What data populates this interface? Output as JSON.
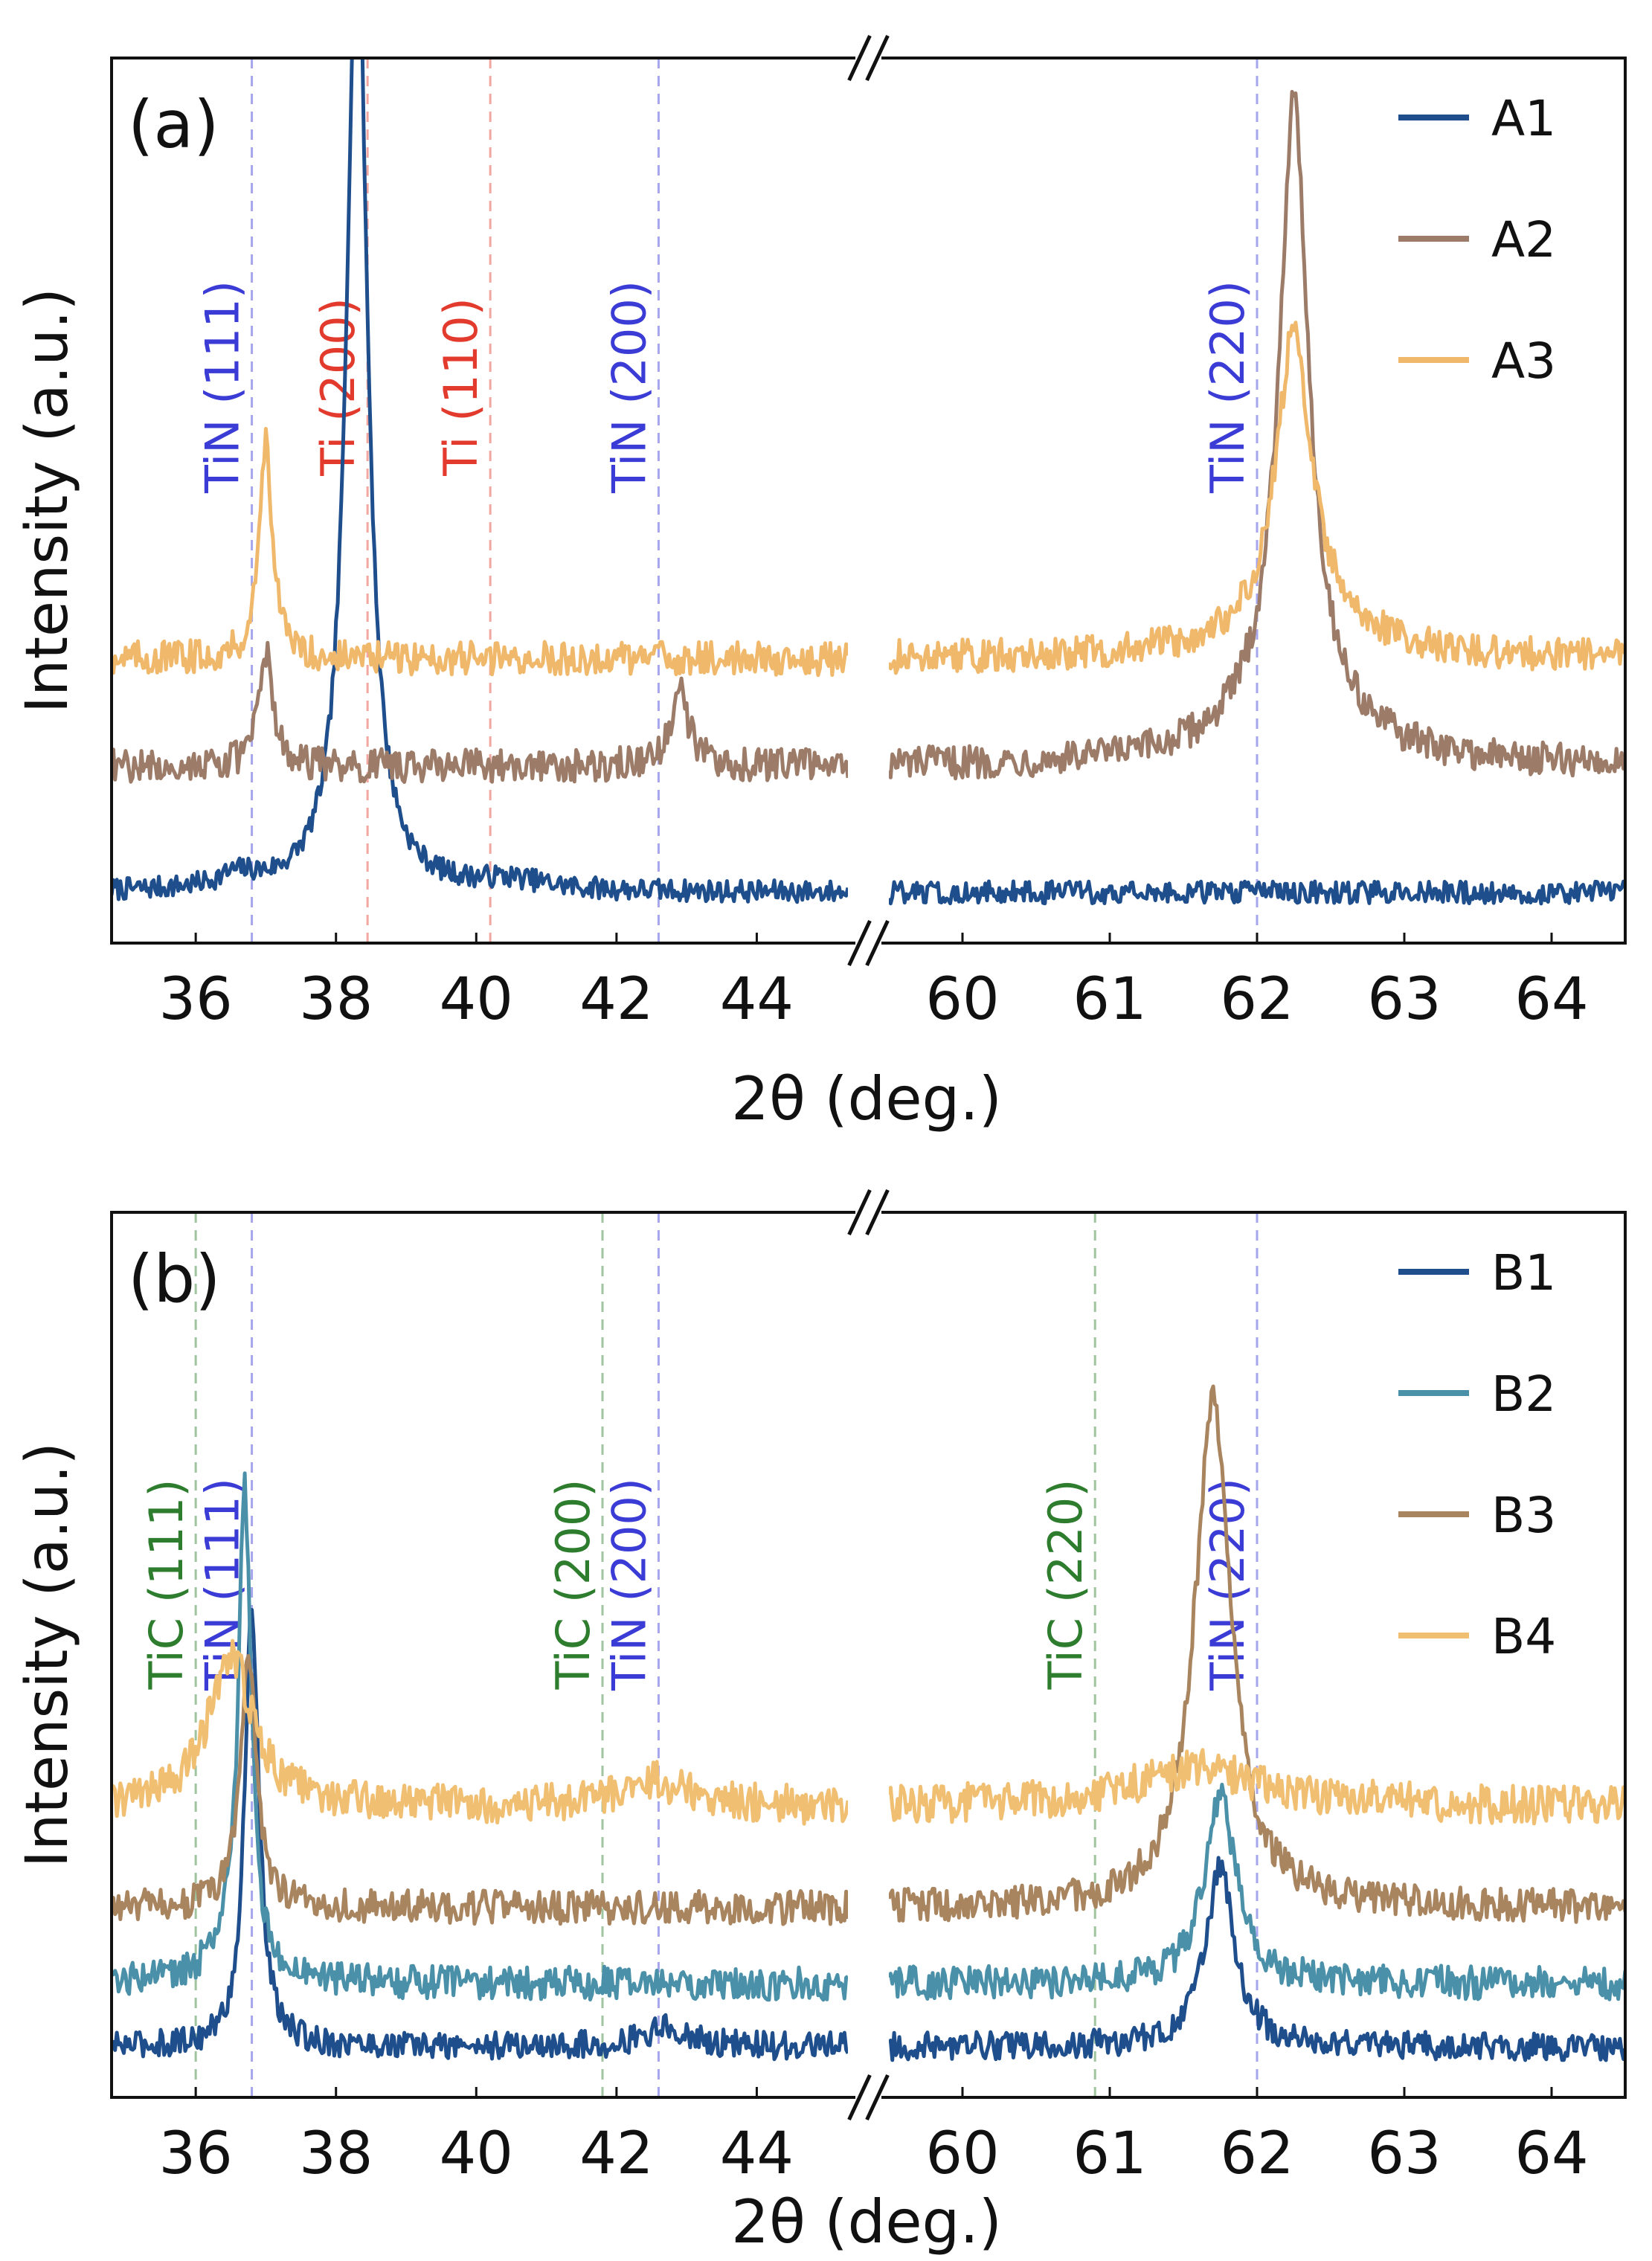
{
  "chart_data": [
    {
      "type": "line",
      "panel_label": "(a)",
      "xlabel": "2θ (deg.)",
      "ylabel": "Intensity (a.u.)",
      "broken_x_axis": true,
      "x_segments": [
        {
          "xlim": [
            34.8,
            45.3
          ],
          "ticks": [
            36,
            38,
            40,
            42,
            44
          ],
          "tick_labels": [
            "36",
            "38",
            "40",
            "42",
            "44"
          ]
        },
        {
          "xlim": [
            59.5,
            64.5
          ],
          "ticks": [
            60,
            61,
            62,
            63,
            64
          ],
          "tick_labels": [
            "60",
            "61",
            "62",
            "63",
            "64"
          ]
        }
      ],
      "ylim": [
        0,
        1.4
      ],
      "legend": {
        "position": "top-right"
      },
      "series": [
        {
          "name": "A1",
          "color": "#1f4e8c",
          "baseline": 0.08,
          "noise": 0.008,
          "peaks": [
            [
              38.3,
              1.55,
              0.18
            ],
            [
              36.6,
              0.02,
              0.35
            ],
            [
              40.5,
              0.015,
              0.6
            ]
          ]
        },
        {
          "name": "A2",
          "color": "#9c7c68",
          "baseline": 0.28,
          "noise": 0.012,
          "peaks": [
            [
              37.0,
              0.18,
              0.12
            ],
            [
              42.9,
              0.12,
              0.15
            ],
            [
              62.25,
              0.95,
              0.12
            ],
            [
              62.25,
              0.1,
              0.45
            ]
          ]
        },
        {
          "name": "A3",
          "color": "#f0b86a",
          "baseline": 0.45,
          "noise": 0.012,
          "peaks": [
            [
              37.0,
              0.35,
              0.11
            ],
            [
              62.25,
              0.46,
              0.14
            ],
            [
              62.3,
              0.06,
              0.5
            ]
          ]
        }
      ],
      "reference_lines": [
        {
          "x": 36.8,
          "label": "TiN (111)",
          "color": "#3b3bd6"
        },
        {
          "x": 38.45,
          "label": "Ti (200)",
          "color": "#e23b2e"
        },
        {
          "x": 40.2,
          "label": "Ti (110)",
          "color": "#e23b2e"
        },
        {
          "x": 42.6,
          "label": "TiN (200)",
          "color": "#3b3bd6"
        },
        {
          "x": 62.0,
          "label": "TiN (220)",
          "color": "#3b3bd6"
        }
      ]
    },
    {
      "type": "line",
      "panel_label": "(b)",
      "xlabel": "2θ (deg.)",
      "ylabel": "Intensity (a.u.)",
      "broken_x_axis": true,
      "x_segments": [
        {
          "xlim": [
            34.8,
            45.3
          ],
          "ticks": [
            36,
            38,
            40,
            42,
            44
          ],
          "tick_labels": [
            "36",
            "38",
            "40",
            "42",
            "44"
          ]
        },
        {
          "xlim": [
            59.5,
            64.5
          ],
          "ticks": [
            60,
            61,
            62,
            63,
            64
          ],
          "tick_labels": [
            "60",
            "61",
            "62",
            "63",
            "64"
          ]
        }
      ],
      "ylim": [
        0,
        1.4
      ],
      "legend": {
        "position": "top-right"
      },
      "series": [
        {
          "name": "B1",
          "color": "#1f4e8c",
          "baseline": 0.08,
          "noise": 0.01,
          "peaks": [
            [
              36.8,
              0.7,
              0.12
            ],
            [
              42.7,
              0.03,
              0.4
            ],
            [
              61.75,
              0.28,
              0.12
            ]
          ]
        },
        {
          "name": "B2",
          "color": "#4a90a8",
          "baseline": 0.18,
          "noise": 0.012,
          "peaks": [
            [
              36.7,
              0.75,
              0.11
            ],
            [
              36.5,
              0.04,
              0.4
            ],
            [
              61.75,
              0.3,
              0.13
            ]
          ]
        },
        {
          "name": "B3",
          "color": "#a8845f",
          "baseline": 0.3,
          "noise": 0.012,
          "peaks": [
            [
              36.75,
              0.4,
              0.14
            ],
            [
              61.7,
              0.8,
              0.15
            ]
          ]
        },
        {
          "name": "B4",
          "color": "#f0bf72",
          "baseline": 0.46,
          "noise": 0.014,
          "peaks": [
            [
              36.5,
              0.24,
              0.38
            ],
            [
              42.5,
              0.04,
              0.6
            ],
            [
              61.6,
              0.06,
              0.55
            ]
          ]
        }
      ],
      "reference_lines": [
        {
          "x": 36.0,
          "label": "TiC (111)",
          "color": "#2e7d2e"
        },
        {
          "x": 36.8,
          "label": "TiN (111)",
          "color": "#3b3bd6"
        },
        {
          "x": 41.8,
          "label": "TiC (200)",
          "color": "#2e7d2e"
        },
        {
          "x": 42.6,
          "label": "TiN (200)",
          "color": "#3b3bd6"
        },
        {
          "x": 60.9,
          "label": "TiC (220)",
          "color": "#2e7d2e"
        },
        {
          "x": 62.0,
          "label": "TiN (220)",
          "color": "#3b3bd6"
        }
      ]
    }
  ]
}
